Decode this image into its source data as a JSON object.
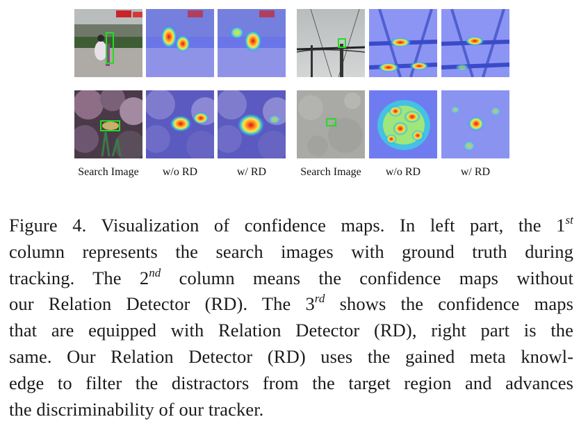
{
  "figure": {
    "column_labels": [
      "Search Image",
      "w/o RD",
      "w/ RD",
      "Search Image",
      "w/o RD",
      "w/ RD"
    ],
    "panels": [
      {
        "row": 1,
        "part": "left",
        "column": "Search Image",
        "scene": "street-scooter",
        "has_groundtruth_box": true
      },
      {
        "row": 1,
        "part": "left",
        "column": "w/o RD",
        "scene": "street-scooter-heatmap"
      },
      {
        "row": 1,
        "part": "left",
        "column": "w/ RD",
        "scene": "street-scooter-heatmap"
      },
      {
        "row": 1,
        "part": "right",
        "column": "Search Image",
        "scene": "power-lines",
        "has_groundtruth_box": true
      },
      {
        "row": 1,
        "part": "right",
        "column": "w/o RD",
        "scene": "power-lines-heatmap"
      },
      {
        "row": 1,
        "part": "right",
        "column": "w/ RD",
        "scene": "power-lines-heatmap"
      },
      {
        "row": 2,
        "part": "left",
        "column": "Search Image",
        "scene": "coral-reef",
        "has_groundtruth_box": true
      },
      {
        "row": 2,
        "part": "left",
        "column": "w/o RD",
        "scene": "coral-reef-heatmap"
      },
      {
        "row": 2,
        "part": "left",
        "column": "w/ RD",
        "scene": "coral-reef-heatmap"
      },
      {
        "row": 2,
        "part": "right",
        "column": "Search Image",
        "scene": "grey-texture",
        "has_groundtruth_box": true
      },
      {
        "row": 2,
        "part": "right",
        "column": "w/o RD",
        "scene": "grey-texture-heatmap"
      },
      {
        "row": 2,
        "part": "right",
        "column": "w/ RD",
        "scene": "grey-texture-heatmap"
      }
    ],
    "colors": {
      "groundtruth_box": "#22dd22",
      "heat_low": "#5a6dff",
      "heat_mid": "#ffe040",
      "heat_high": "#e0201a"
    }
  },
  "caption": {
    "line1_a": "Figure 4. Visualization of confidence maps.  In left part, the 1",
    "line1_sup": "st",
    "line2": "column represents the search images with ground truth during",
    "line3_a": "tracking.  The 2",
    "line3_sup": "nd",
    "line3_b": " column means the confidence maps without",
    "line4_a": "our Relation Detector (RD). The 3",
    "line4_sup": "rd",
    "line4_b": " shows the confidence maps",
    "line5": "that are equipped with Relation Detector (RD), right part is the",
    "line6": "same.  Our Relation Detector (RD) uses the gained meta knowl-",
    "line7": "edge to filter the distractors from the target region and advances",
    "line8": "the discriminability of our tracker."
  }
}
